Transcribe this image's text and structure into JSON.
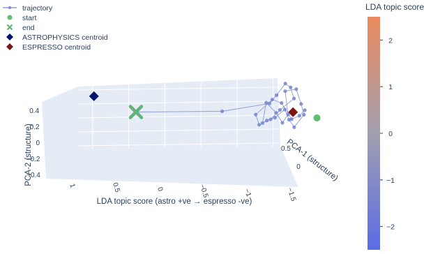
{
  "chart_data": {
    "type": "scatter3d",
    "axes": {
      "x": {
        "label": "LDA topic score (astro +ve → espresso -ve)",
        "ticks": [
          "1",
          "0.5",
          "0",
          "−0.5",
          "−1",
          "−1.5"
        ],
        "range": [
          1.2,
          -1.6
        ]
      },
      "y": {
        "label": "PCA-1 (structure)",
        "ticks": [
          "0.5",
          "0"
        ],
        "range": [
          0.7,
          -0.3
        ]
      },
      "z": {
        "label": "PCA-2 (structure)",
        "ticks": [
          "0.4",
          "0.2",
          "0",
          "−0.2",
          "−0.4"
        ],
        "range": [
          -0.45,
          0.45
        ]
      }
    },
    "legend": {
      "placement": "top-left",
      "items": [
        {
          "label": "trajectory",
          "symbol": "line-marker",
          "color": "#7b8bd0"
        },
        {
          "label": "start",
          "symbol": "circle",
          "color": "#5fbf6e"
        },
        {
          "label": "end",
          "symbol": "x",
          "color": "#62b27a"
        },
        {
          "label": "ASTROPHYSICS centroid",
          "symbol": "diamond",
          "color": "#00156e"
        },
        {
          "label": "ESPRESSO centroid",
          "symbol": "diamond",
          "color": "#7a1512"
        }
      ]
    },
    "colorbar": {
      "title": "LDA topic score",
      "ticks": [
        "2",
        "1",
        "0",
        "−1",
        "−2"
      ],
      "range": [
        -2.5,
        2.5
      ],
      "colors": [
        "#5a6be6",
        "#a29fb0",
        "#ec8a5e"
      ]
    },
    "series": [
      {
        "name": "trajectory",
        "color": "#7b8bd0",
        "points": [
          [
            0.55,
            0.65,
            -0.02
          ],
          [
            -0.45,
            0.62,
            0.03
          ],
          [
            -1.0,
            0.6,
            0.14
          ],
          [
            -1.1,
            0.55,
            0.25
          ],
          [
            -1.2,
            0.55,
            0.38
          ],
          [
            -1.25,
            0.58,
            0.33
          ],
          [
            -1.3,
            0.55,
            0.22
          ],
          [
            -1.15,
            0.52,
            0.1
          ],
          [
            -1.05,
            0.5,
            0.0
          ],
          [
            -0.95,
            0.52,
            -0.05
          ],
          [
            -1.0,
            0.5,
            0.18
          ],
          [
            -1.12,
            0.48,
            0.08
          ],
          [
            -1.2,
            0.46,
            -0.02
          ],
          [
            -1.25,
            0.5,
            0.06
          ],
          [
            -1.18,
            0.6,
            0.28
          ],
          [
            -1.3,
            0.62,
            0.3
          ],
          [
            -1.4,
            0.5,
            0.18
          ],
          [
            -1.45,
            0.45,
            0.08
          ],
          [
            -1.35,
            0.42,
            -0.05
          ],
          [
            -1.28,
            0.45,
            0.02
          ],
          [
            -1.22,
            0.48,
            0.12
          ],
          [
            -1.1,
            0.5,
            0.02
          ],
          [
            -1.0,
            0.52,
            -0.02
          ],
          [
            -0.9,
            0.55,
            -0.08
          ],
          [
            -0.85,
            0.58,
            0.02
          ],
          [
            -1.05,
            0.55,
            0.2
          ],
          [
            -1.15,
            0.57,
            0.16
          ],
          [
            -1.28,
            0.53,
            0.0
          ],
          [
            -1.38,
            0.5,
            0.05
          ],
          [
            -1.45,
            0.48,
            0.12
          ]
        ]
      },
      {
        "name": "start",
        "points": [
          [
            -1.6,
            0.45,
            0.05
          ]
        ]
      },
      {
        "name": "end",
        "points": [
          [
            0.55,
            0.65,
            -0.02
          ]
        ]
      },
      {
        "name": "ASTROPHYSICS centroid",
        "points": [
          [
            1.05,
            0.7,
            0.12
          ]
        ]
      },
      {
        "name": "ESPRESSO centroid",
        "points": [
          [
            -1.3,
            0.52,
            0.08
          ]
        ]
      }
    ]
  }
}
